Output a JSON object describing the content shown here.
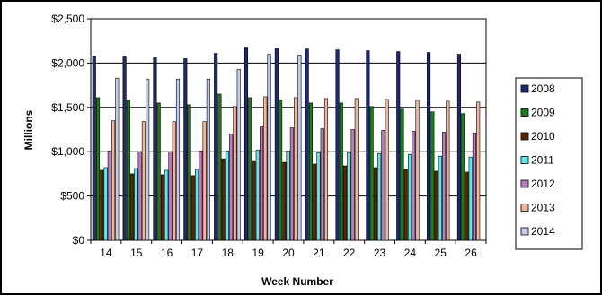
{
  "chart_data": {
    "type": "bar",
    "title": "",
    "xlabel": "Week Number",
    "ylabel": "Millions",
    "ylim": [
      0,
      2500
    ],
    "yticks": [
      0,
      500,
      1000,
      1500,
      2000,
      2500
    ],
    "ytick_labels": [
      "$0",
      "$500",
      "$1,000",
      "$1,500",
      "$2,000",
      "$2,500"
    ],
    "grid": true,
    "legend_position": "right",
    "categories": [
      "14",
      "15",
      "16",
      "17",
      "18",
      "19",
      "20",
      "21",
      "22",
      "23",
      "24",
      "25",
      "26"
    ],
    "series": [
      {
        "name": "2008",
        "color": "#1f2a6e",
        "values": [
          2080,
          2070,
          2060,
          2050,
          2110,
          2180,
          2170,
          2160,
          2150,
          2140,
          2130,
          2120,
          2100
        ]
      },
      {
        "name": "2009",
        "color": "#1e7a1e",
        "values": [
          1610,
          1580,
          1550,
          1530,
          1650,
          1610,
          1580,
          1550,
          1550,
          1510,
          1480,
          1450,
          1430
        ]
      },
      {
        "name": "2010",
        "color": "#5a2600",
        "values": [
          790,
          750,
          740,
          730,
          920,
          900,
          880,
          860,
          840,
          820,
          800,
          780,
          770
        ]
      },
      {
        "name": "2011",
        "color": "#5fe8e8",
        "values": [
          820,
          810,
          790,
          800,
          1010,
          1020,
          1010,
          990,
          990,
          980,
          970,
          950,
          940
        ]
      },
      {
        "name": "2012",
        "color": "#b77fbf",
        "values": [
          1010,
          1000,
          1000,
          1010,
          1200,
          1280,
          1270,
          1260,
          1250,
          1240,
          1230,
          1220,
          1210
        ]
      },
      {
        "name": "2013",
        "color": "#f4b59a",
        "values": [
          1350,
          1340,
          1340,
          1340,
          1510,
          1620,
          1610,
          1600,
          1600,
          1590,
          1580,
          1570,
          1560
        ]
      },
      {
        "name": "2014",
        "color": "#c3cdea",
        "values": [
          1830,
          1820,
          1820,
          1820,
          1930,
          2100,
          2090,
          null,
          null,
          null,
          null,
          null,
          null
        ]
      }
    ]
  }
}
